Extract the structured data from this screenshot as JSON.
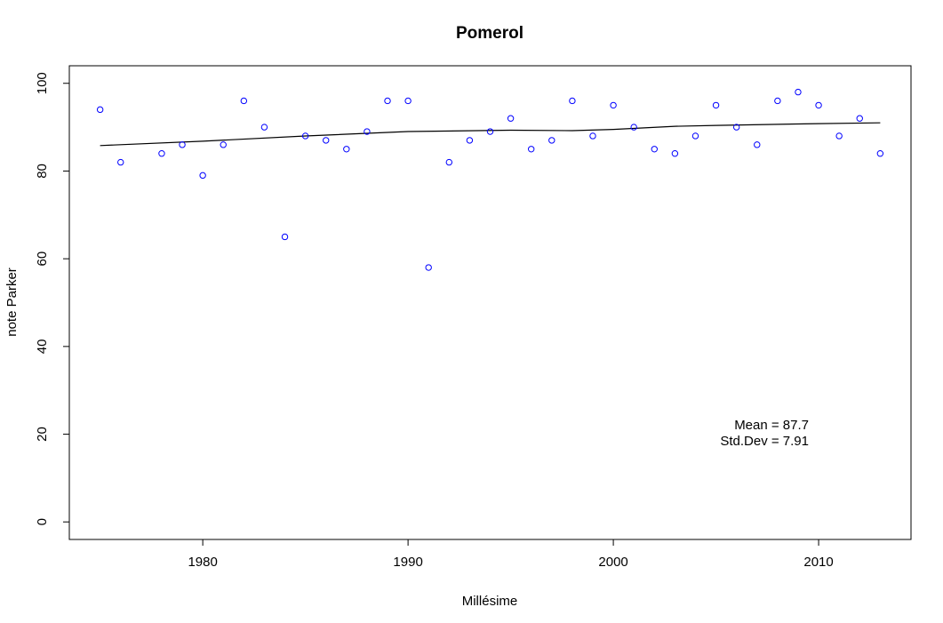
{
  "chart_data": {
    "type": "scatter",
    "title": "Pomerol",
    "xlabel": "Millésime",
    "ylabel": "note Parker",
    "xlim": [
      1973.5,
      2014.5
    ],
    "ylim": [
      -4,
      104
    ],
    "x_ticks": [
      1980,
      1990,
      2000,
      2010
    ],
    "y_ticks": [
      0,
      20,
      40,
      60,
      80,
      100
    ],
    "grid": false,
    "colors": {
      "points": "#0000ff",
      "trend": "#000000",
      "axes": "#000000",
      "text": "#000000"
    },
    "series": [
      {
        "name": "",
        "marker": "open-circle",
        "x": [
          1975,
          1976,
          1978,
          1979,
          1980,
          1981,
          1982,
          1983,
          1984,
          1985,
          1986,
          1987,
          1988,
          1989,
          1990,
          1991,
          1992,
          1993,
          1994,
          1995,
          1996,
          1997,
          1998,
          1999,
          2000,
          2001,
          2002,
          2003,
          2004,
          2005,
          2006,
          2007,
          2008,
          2009,
          2010,
          2011,
          2012,
          2013
        ],
        "y": [
          94,
          82,
          84,
          86,
          79,
          86,
          96,
          90,
          65,
          88,
          87,
          85,
          89,
          96,
          96,
          58,
          82,
          87,
          89,
          92,
          85,
          87,
          96,
          88,
          95,
          90,
          85,
          84,
          88,
          95,
          90,
          86,
          96,
          98,
          95,
          88,
          92,
          84
        ]
      }
    ],
    "trend_line": {
      "x": [
        1975,
        1980,
        1985,
        1990,
        1995,
        1998,
        2000,
        2003,
        2005,
        2010,
        2013
      ],
      "y": [
        85.8,
        86.8,
        88.0,
        89.0,
        89.3,
        89.2,
        89.5,
        90.2,
        90.4,
        90.8,
        91.0
      ]
    },
    "annotations": [
      "Mean = 87.7",
      "Std.Dev = 7.91"
    ]
  }
}
